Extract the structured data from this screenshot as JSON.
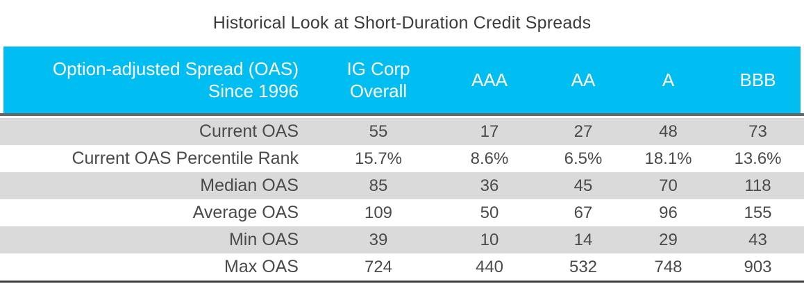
{
  "title": "Historical Look at Short-Duration Credit Spreads",
  "colors": {
    "header_background": "#00bdf2",
    "header_text": "#ffffff",
    "shaded_row": "#dadada",
    "body_text": "#4a4a4a",
    "title_text": "#3c3c3c",
    "header_separator": "#666666",
    "bottom_border": "#3e3e3e"
  },
  "table": {
    "header": {
      "label_line1": "Option-adjusted Spread (OAS)",
      "label_line2": "Since 1996",
      "col_ig_line1": "IG Corp",
      "col_ig_line2": "Overall",
      "col_aaa": "AAA",
      "col_aa": "AA",
      "col_a": "A",
      "col_bbb": "BBB"
    },
    "rows": [
      {
        "label": "Current OAS",
        "values": [
          "55",
          "17",
          "27",
          "48",
          "73"
        ]
      },
      {
        "label": "Current OAS Percentile Rank",
        "values": [
          "15.7%",
          "8.6%",
          "6.5%",
          "18.1%",
          "13.6%"
        ]
      },
      {
        "label": "Median OAS",
        "values": [
          "85",
          "36",
          "45",
          "70",
          "118"
        ]
      },
      {
        "label": "Average OAS",
        "values": [
          "109",
          "50",
          "67",
          "96",
          "155"
        ]
      },
      {
        "label": "Min OAS",
        "values": [
          "39",
          "10",
          "14",
          "29",
          "43"
        ]
      },
      {
        "label": "Max OAS",
        "values": [
          "724",
          "440",
          "532",
          "748",
          "903"
        ]
      }
    ]
  },
  "chart_data": {
    "type": "table",
    "title": "Historical Look at Short-Duration Credit Spreads",
    "columns": [
      "Option-adjusted Spread (OAS) Since 1996",
      "IG Corp Overall",
      "AAA",
      "AA",
      "A",
      "BBB"
    ],
    "rows": [
      [
        "Current OAS",
        55,
        17,
        27,
        48,
        73
      ],
      [
        "Current OAS Percentile Rank",
        "15.7%",
        "8.6%",
        "6.5%",
        "18.1%",
        "13.6%"
      ],
      [
        "Median OAS",
        85,
        36,
        45,
        70,
        118
      ],
      [
        "Average OAS",
        109,
        50,
        67,
        96,
        155
      ],
      [
        "Min OAS",
        39,
        10,
        14,
        29,
        43
      ],
      [
        "Max OAS",
        724,
        440,
        532,
        748,
        903
      ]
    ]
  }
}
